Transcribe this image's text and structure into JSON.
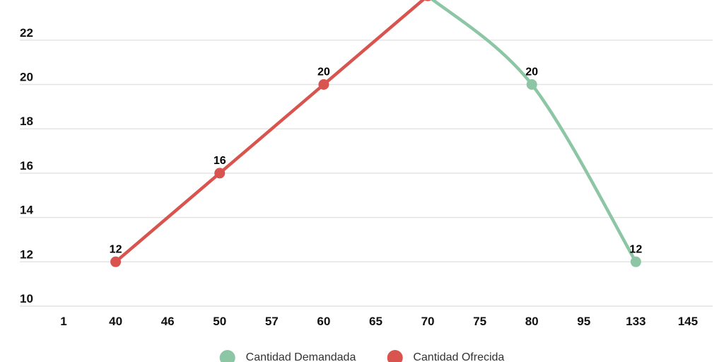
{
  "chart_data": {
    "type": "line",
    "smooth": true,
    "title": "",
    "xlabel": "",
    "ylabel": "",
    "x_categories": [
      "1",
      "40",
      "46",
      "50",
      "57",
      "60",
      "65",
      "70",
      "75",
      "80",
      "95",
      "133",
      "145"
    ],
    "y_ticks": [
      22,
      20,
      18,
      16,
      14,
      12,
      10
    ],
    "ylim": [
      10,
      24
    ],
    "grid": "horizontal-only",
    "grid_color": "#e2e2e2",
    "axis_text_color": "#111111",
    "legend_position": "bottom",
    "series": [
      {
        "name": "Cantidad Demandada",
        "color": "#8cc6a4",
        "points": [
          [
            "70",
            24
          ],
          [
            "80",
            20
          ],
          [
            "133",
            12
          ]
        ],
        "visible_point_labels": [
          "20",
          "12"
        ]
      },
      {
        "name": "Cantidad Ofrecida",
        "color": "#d9534f",
        "points": [
          [
            "40",
            12
          ],
          [
            "50",
            16
          ],
          [
            "60",
            20
          ],
          [
            "70",
            24
          ]
        ],
        "visible_point_labels": [
          "12",
          "16",
          "20"
        ]
      }
    ]
  }
}
